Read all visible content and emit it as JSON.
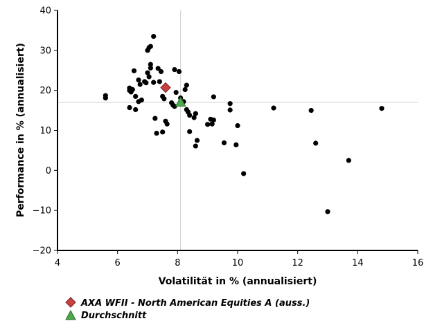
{
  "chart_data": {
    "type": "scatter",
    "title": "",
    "xlabel": "Volatilität in % (annualisiert)",
    "ylabel": "Performance in % (annualisiert)",
    "xlim": [
      4,
      16
    ],
    "ylim": [
      -20,
      40
    ],
    "xticks": [
      4,
      6,
      8,
      10,
      12,
      14,
      16
    ],
    "yticks": [
      40,
      30,
      20,
      10,
      0,
      -10,
      -20
    ],
    "grid": false,
    "reference_lines": {
      "x": 8.1,
      "y": 17
    },
    "legend_position": "bottom-left",
    "colors": {
      "peers": "#000000",
      "fund": "#c84141",
      "average": "#4aa84a"
    },
    "series": [
      {
        "values": [
          [
            5.6,
            18.7
          ],
          [
            5.6,
            18.1
          ],
          [
            6.4,
            20.6
          ],
          [
            6.4,
            20.0
          ],
          [
            6.45,
            19.6
          ],
          [
            6.4,
            15.7
          ],
          [
            6.55,
            24.9
          ],
          [
            6.5,
            20.2
          ],
          [
            6.6,
            18.5
          ],
          [
            6.6,
            15.2
          ],
          [
            6.7,
            22.6
          ],
          [
            6.75,
            21.5
          ],
          [
            6.8,
            17.6
          ],
          [
            6.7,
            17.2
          ],
          [
            6.9,
            22.2
          ],
          [
            6.95,
            21.9
          ],
          [
            7.0,
            30.0
          ],
          [
            7.05,
            30.7
          ],
          [
            7.1,
            31.0
          ],
          [
            7.0,
            24.4
          ],
          [
            7.05,
            23.4
          ],
          [
            7.1,
            25.6
          ],
          [
            7.1,
            26.5
          ],
          [
            7.2,
            33.5
          ],
          [
            7.2,
            22.0
          ],
          [
            7.25,
            13.0
          ],
          [
            7.3,
            9.3
          ],
          [
            7.35,
            25.5
          ],
          [
            7.4,
            22.2
          ],
          [
            7.45,
            24.7
          ],
          [
            7.5,
            9.6
          ],
          [
            7.5,
            18.5
          ],
          [
            7.55,
            17.9
          ],
          [
            7.6,
            12.3
          ],
          [
            7.65,
            11.6
          ],
          [
            7.8,
            16.9
          ],
          [
            7.85,
            16.3
          ],
          [
            7.9,
            16.0
          ],
          [
            7.9,
            25.2
          ],
          [
            7.95,
            19.5
          ],
          [
            8.05,
            24.7
          ],
          [
            8.1,
            18.1
          ],
          [
            8.2,
            17.2
          ],
          [
            8.25,
            20.2
          ],
          [
            8.3,
            21.3
          ],
          [
            8.3,
            15.2
          ],
          [
            8.35,
            14.6
          ],
          [
            8.4,
            13.8
          ],
          [
            8.4,
            9.7
          ],
          [
            8.55,
            13.2
          ],
          [
            8.6,
            14.2
          ],
          [
            8.6,
            6.1
          ],
          [
            8.65,
            7.5
          ],
          [
            9.0,
            11.5
          ],
          [
            9.1,
            12.8
          ],
          [
            9.15,
            11.6
          ],
          [
            9.2,
            18.4
          ],
          [
            9.2,
            12.6
          ],
          [
            9.55,
            6.9
          ],
          [
            9.75,
            16.7
          ],
          [
            9.75,
            15.1
          ],
          [
            9.95,
            6.4
          ],
          [
            10.0,
            11.2
          ],
          [
            10.2,
            -0.8
          ],
          [
            11.2,
            15.6
          ],
          [
            12.45,
            15.0
          ],
          [
            12.6,
            6.8
          ],
          [
            13.0,
            -10.3
          ],
          [
            13.7,
            2.5
          ],
          [
            14.8,
            15.5
          ]
        ]
      },
      {
        "name": "AXA WFII - North American Equities A (auss.)",
        "marker": "diamond",
        "values": [
          [
            7.6,
            20.7
          ]
        ]
      },
      {
        "name": "Durchschnitt",
        "marker": "triangle",
        "values": [
          [
            8.1,
            17.1
          ]
        ]
      }
    ]
  }
}
